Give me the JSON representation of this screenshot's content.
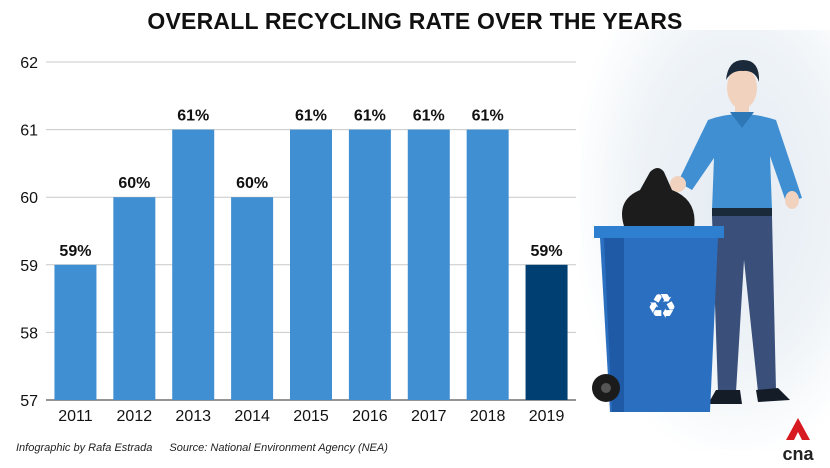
{
  "chart_data": {
    "type": "bar",
    "title": "OVERALL RECYCLING RATE OVER THE YEARS",
    "categories": [
      "2011",
      "2012",
      "2013",
      "2014",
      "2015",
      "2016",
      "2017",
      "2018",
      "2019"
    ],
    "values": [
      59,
      60,
      61,
      60,
      61,
      61,
      61,
      61,
      59
    ],
    "data_labels": [
      "59%",
      "60%",
      "61%",
      "60%",
      "61%",
      "61%",
      "61%",
      "61%",
      "59%"
    ],
    "ylim": [
      57,
      62
    ],
    "yticks": [
      57,
      58,
      59,
      60,
      61,
      62
    ],
    "grid": true,
    "colors": {
      "bar": "#3f8fd2",
      "highlight": "#003f72",
      "grid": "#c8c8c8"
    },
    "highlight_index": 8
  },
  "footer": {
    "credit": "Infographic by Rafa Estrada",
    "source": "Source: National Environment Agency (NEA)"
  },
  "logo": {
    "text": "cna",
    "color": "#d71920"
  },
  "illustration": {
    "icon": "man-with-recycling-bin-icon"
  }
}
